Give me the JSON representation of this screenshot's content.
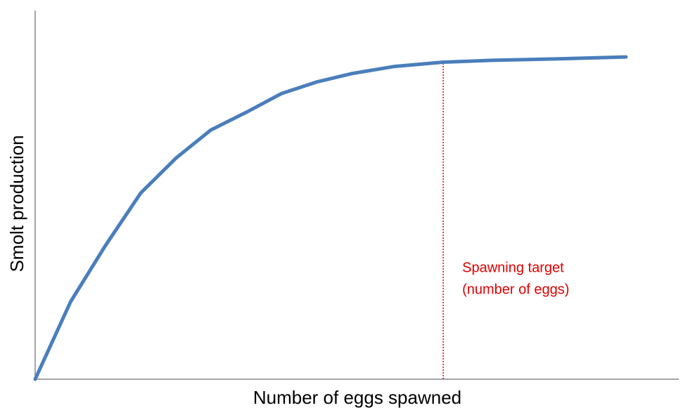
{
  "chart_data": {
    "type": "line",
    "xlabel": "Number of eggs spawned",
    "ylabel": "Smolt production",
    "x": [
      0,
      5.5,
      10.9,
      16.4,
      21.9,
      27.3,
      32.8,
      38.3,
      43.7,
      49.2,
      55.7,
      63.4,
      71.0,
      81.4,
      91.8
    ],
    "values": [
      0,
      21.0,
      36.2,
      50.5,
      60.0,
      67.6,
      72.4,
      77.5,
      80.6,
      82.9,
      84.8,
      86.0,
      86.5,
      86.9,
      87.4
    ],
    "color": "#4a7ebb",
    "xlim": [
      0,
      100
    ],
    "ylim": [
      0,
      100
    ],
    "target": {
      "x": 63.4,
      "color": "#e00000",
      "label": [
        "Spawning target",
        "(number of eggs)"
      ]
    }
  }
}
